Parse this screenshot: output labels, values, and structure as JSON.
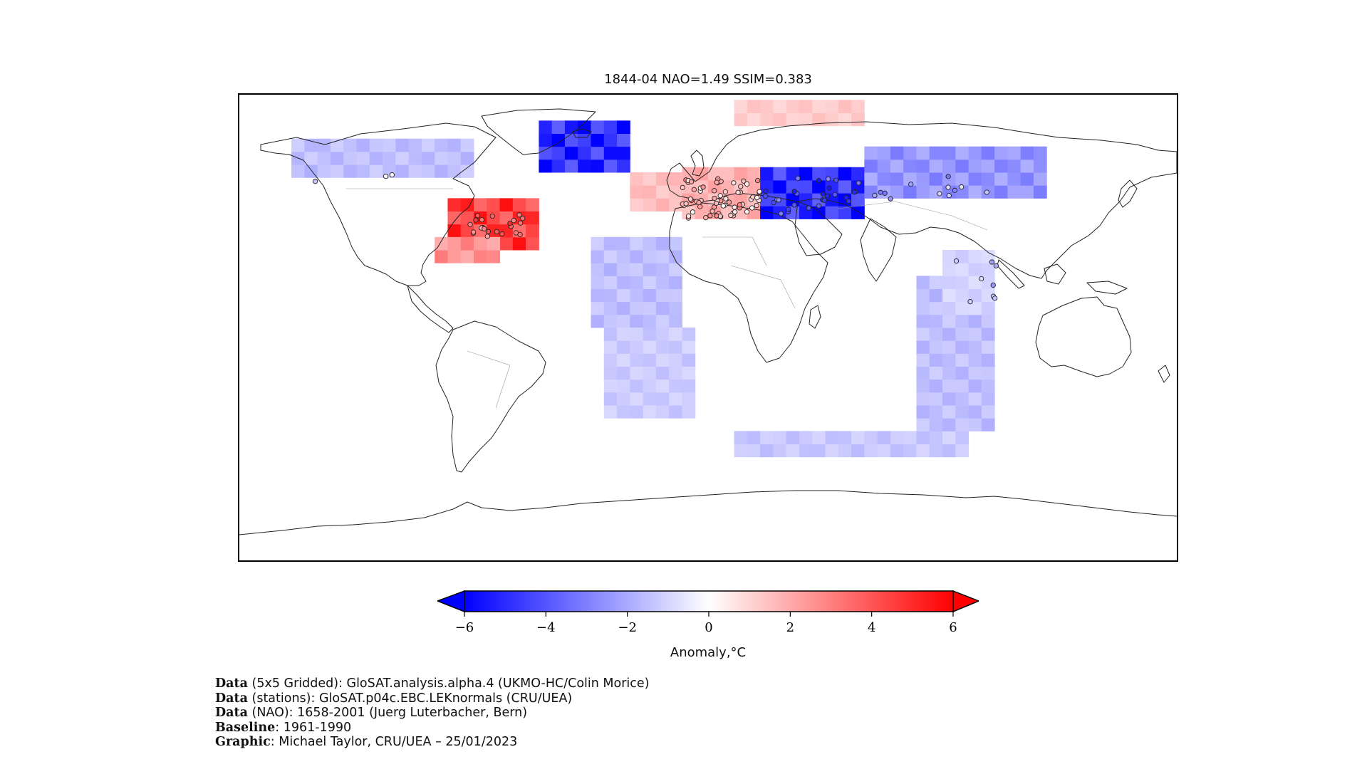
{
  "title": "1844-04 NAO=1.49 SSIM=0.383",
  "map": {
    "projection": "plate-carree",
    "lon_range": [
      -180,
      180
    ],
    "lat_range": [
      -90,
      90
    ],
    "grid_resolution_deg": 5,
    "variable": "temperature anomaly",
    "units": "°C",
    "anomaly_regions": [
      {
        "lon_min": -160,
        "lon_max": -90,
        "lat_min": 58,
        "lat_max": 73,
        "anomaly": -1.5
      },
      {
        "lon_min": -100,
        "lon_max": -65,
        "lat_min": 30,
        "lat_max": 47,
        "anomaly": 4.5
      },
      {
        "lon_min": -105,
        "lon_max": -80,
        "lat_min": 25,
        "lat_max": 35,
        "anomaly": 2.5
      },
      {
        "lon_min": -65,
        "lon_max": -30,
        "lat_min": 60,
        "lat_max": 80,
        "anomaly": -5.0
      },
      {
        "lon_min": -30,
        "lon_max": -10,
        "lat_min": 45,
        "lat_max": 60,
        "anomaly": 1.5
      },
      {
        "lon_min": -10,
        "lon_max": 20,
        "lat_min": 42,
        "lat_max": 60,
        "anomaly": 1.8
      },
      {
        "lon_min": 20,
        "lon_max": 60,
        "lat_min": 42,
        "lat_max": 60,
        "anomaly": -5.0
      },
      {
        "lon_min": 60,
        "lon_max": 130,
        "lat_min": 50,
        "lat_max": 70,
        "anomaly": -2.5
      },
      {
        "lon_min": 10,
        "lon_max": 60,
        "lat_min": 78,
        "lat_max": 85,
        "anomaly": 1.2
      },
      {
        "lon_min": -45,
        "lon_max": -10,
        "lat_min": 0,
        "lat_max": 35,
        "anomaly": -1.5
      },
      {
        "lon_min": -40,
        "lon_max": -5,
        "lat_min": -35,
        "lat_max": 0,
        "anomaly": -1.2
      },
      {
        "lon_min": 10,
        "lon_max": 100,
        "lat_min": -50,
        "lat_max": -40,
        "anomaly": -1.3
      },
      {
        "lon_min": 80,
        "lon_max": 110,
        "lat_min": -40,
        "lat_max": 20,
        "anomaly": -1.5
      },
      {
        "lon_min": 90,
        "lon_max": 110,
        "lat_min": 5,
        "lat_max": 30,
        "anomaly": -1.0
      }
    ]
  },
  "stations": {
    "marker": "circle with black edge, filled by anomaly colour",
    "count_visible": 150
  },
  "colorbar": {
    "cmap": "bwr",
    "vmin": -6,
    "vmax": 6,
    "extend": "both",
    "ticks": [
      "−6",
      "−4",
      "−2",
      "0",
      "2",
      "4",
      "6"
    ],
    "label": "Anomaly,°C",
    "low_color": "#0000ff",
    "mid_color": "#ffffff",
    "high_color": "#ff0000"
  },
  "credits": [
    {
      "key": "Data",
      "text": " (5x5 Gridded): GloSAT.analysis.alpha.4 (UKMO-HC/Colin Morice)"
    },
    {
      "key": "Data",
      "text": " (stations): GloSAT.p04c.EBC.LEKnormals (CRU/UEA)"
    },
    {
      "key": "Data",
      "text": " (NAO): 1658-2001 (Juerg Luterbacher, Bern)"
    },
    {
      "key": "Baseline",
      "text": ": 1961-1990"
    },
    {
      "key": "Graphic",
      "text": ": Michael Taylor, CRU/UEA – 25/01/2023"
    }
  ]
}
